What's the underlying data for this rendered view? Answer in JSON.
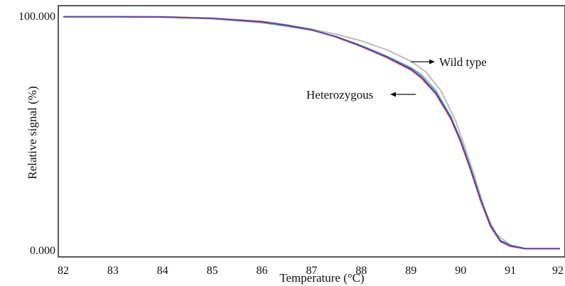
{
  "chart_data": {
    "type": "line",
    "title": "",
    "xlabel": "Temperature (°C)",
    "ylabel": "Relative signal (%)",
    "xlim": [
      81.9,
      92.1
    ],
    "ylim": [
      0,
      100
    ],
    "x_ticks": [
      "82",
      "83",
      "84",
      "85",
      "86",
      "87",
      "88",
      "89",
      "90",
      "91",
      "92"
    ],
    "y_ticks": [
      "0.000",
      "100.000"
    ],
    "grid": false,
    "legend": "none",
    "annotations": [
      "Wild type",
      "Heterozygous"
    ],
    "series": [
      {
        "color": "#bdbdbd",
        "x": [
          82.0,
          83.0,
          84.0,
          85.0,
          86.0,
          86.5,
          87.0,
          87.5,
          88.0,
          88.5,
          89.0,
          89.3,
          89.6,
          89.9,
          90.1,
          90.3,
          90.5,
          90.7,
          91.0,
          91.3,
          92.0
        ],
        "y": [
          99.5,
          99.5,
          99.4,
          98.8,
          97.4,
          96.0,
          94.2,
          92.0,
          89.2,
          85.5,
          80.5,
          76.0,
          68.0,
          55.0,
          43.0,
          30.0,
          16.0,
          7.0,
          2.0,
          0.5,
          0.5
        ]
      },
      {
        "color": "#6ab0d8",
        "x": [
          82.0,
          83.0,
          84.0,
          85.0,
          86.0,
          86.5,
          87.0,
          87.5,
          88.0,
          88.5,
          89.0,
          89.2,
          89.5,
          89.8,
          90.0,
          90.2,
          90.4,
          90.6,
          90.8,
          91.0,
          91.3,
          92.0
        ],
        "y": [
          99.5,
          99.5,
          99.4,
          98.7,
          97.0,
          95.5,
          93.8,
          91.0,
          87.2,
          82.8,
          77.8,
          75.0,
          68.0,
          57.0,
          47.0,
          35.0,
          22.0,
          11.0,
          4.0,
          2.0,
          0.5,
          0.5
        ]
      },
      {
        "color": "#d9534f",
        "x": [
          82.0,
          83.0,
          84.0,
          85.0,
          86.0,
          86.5,
          87.0,
          87.5,
          88.0,
          88.5,
          89.0,
          89.2,
          89.5,
          89.8,
          90.0,
          90.2,
          90.4,
          90.6,
          90.8,
          91.0,
          91.3,
          92.0
        ],
        "y": [
          99.5,
          99.5,
          99.5,
          98.9,
          97.5,
          96.0,
          94.0,
          90.8,
          86.8,
          82.2,
          76.8,
          73.5,
          66.5,
          56.0,
          46.0,
          34.0,
          21.0,
          10.0,
          3.5,
          1.5,
          0.5,
          0.5
        ]
      },
      {
        "color": "#5b4a9e",
        "x": [
          82.0,
          83.0,
          84.0,
          85.0,
          86.0,
          86.5,
          87.0,
          87.5,
          88.0,
          88.5,
          89.0,
          89.2,
          89.5,
          89.8,
          90.0,
          90.2,
          90.4,
          90.6,
          90.8,
          91.0,
          91.3,
          92.0
        ],
        "y": [
          99.5,
          99.5,
          99.4,
          98.8,
          97.3,
          95.8,
          93.9,
          90.9,
          87.0,
          82.5,
          77.2,
          74.0,
          67.0,
          56.5,
          46.5,
          34.5,
          21.5,
          10.5,
          3.8,
          1.8,
          0.5,
          0.5
        ]
      }
    ]
  }
}
